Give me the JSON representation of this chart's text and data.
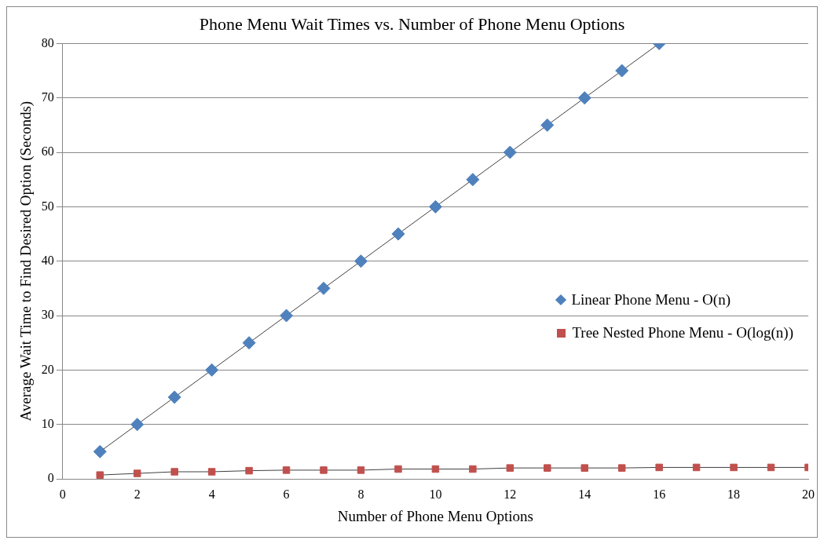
{
  "chart_data": {
    "type": "line",
    "title": "Phone Menu Wait Times vs. Number of Phone Menu Options",
    "xlabel": "Number of Phone Menu Options",
    "ylabel": "Average Wait Time to Find Desired Option (Seconds)",
    "xlim": [
      0,
      20
    ],
    "xticks": [
      0,
      2,
      4,
      6,
      8,
      10,
      12,
      14,
      16,
      18,
      20
    ],
    "ylim": [
      0,
      80
    ],
    "yticks": [
      0,
      10,
      20,
      30,
      40,
      50,
      60,
      70,
      80
    ],
    "grid": "y",
    "legend": "right",
    "line_style": "solid",
    "series": [
      {
        "name": "Linear Phone Menu - O(n)",
        "color": "#4f81bd",
        "marker": "diamond",
        "x": [
          1,
          2,
          3,
          4,
          5,
          6,
          7,
          8,
          9,
          10,
          11,
          12,
          13,
          14,
          15,
          16
        ],
        "values": [
          5,
          10,
          15,
          20,
          25,
          30,
          35,
          40,
          45,
          50,
          55,
          60,
          65,
          70,
          75,
          80
        ]
      },
      {
        "name": "Tree Nested Phone Menu - O(log(n))",
        "color": "#c0504d",
        "marker": "square",
        "x": [
          1,
          2,
          3,
          4,
          5,
          6,
          7,
          8,
          9,
          10,
          11,
          12,
          13,
          14,
          15,
          16,
          17,
          18,
          19,
          20
        ],
        "values": [
          0.7,
          1.0,
          1.3,
          1.3,
          1.5,
          1.6,
          1.6,
          1.6,
          1.8,
          1.8,
          1.8,
          2.0,
          2.0,
          2.0,
          2.0,
          2.1,
          2.1,
          2.1,
          2.1,
          2.1
        ]
      }
    ]
  }
}
